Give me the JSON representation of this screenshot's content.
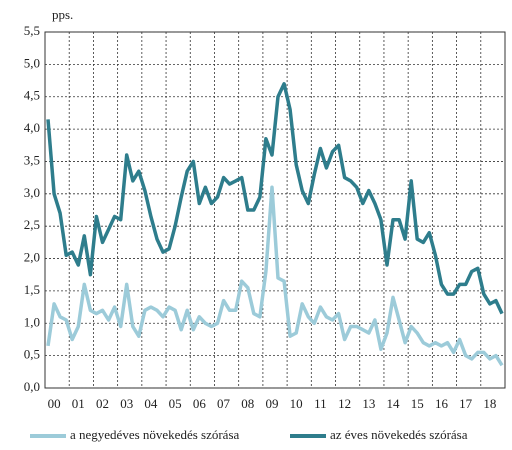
{
  "chart_data": {
    "type": "line",
    "y_label": "pps.",
    "categories": [
      null,
      "00",
      null,
      null,
      null,
      "01",
      null,
      null,
      null,
      "02",
      null,
      null,
      null,
      "03",
      null,
      null,
      null,
      "04",
      null,
      null,
      null,
      "05",
      null,
      null,
      null,
      "06",
      null,
      null,
      null,
      "07",
      null,
      null,
      null,
      "08",
      null,
      null,
      null,
      "09",
      null,
      null,
      null,
      "10",
      null,
      null,
      null,
      "11",
      null,
      null,
      null,
      "12",
      null,
      null,
      null,
      "13",
      null,
      null,
      null,
      "14",
      null,
      null,
      null,
      "15",
      null,
      null,
      null,
      "16",
      null,
      null,
      null,
      "17",
      null,
      null,
      null,
      "18",
      null,
      null
    ],
    "series": [
      {
        "name": "a negyedéves növekedés szórása",
        "color": "#9ccbd9",
        "values": [
          0.65,
          1.3,
          1.1,
          1.05,
          0.75,
          0.95,
          1.6,
          1.2,
          1.15,
          1.2,
          1.05,
          1.25,
          0.95,
          1.6,
          0.95,
          0.8,
          1.2,
          1.25,
          1.2,
          1.1,
          1.25,
          1.2,
          0.9,
          1.2,
          0.9,
          1.1,
          1.0,
          0.95,
          1.0,
          1.35,
          1.2,
          1.2,
          1.65,
          1.55,
          1.15,
          1.1,
          1.8,
          3.1,
          1.7,
          1.65,
          0.8,
          0.85,
          1.3,
          1.1,
          1.0,
          1.25,
          1.1,
          1.05,
          1.15,
          0.75,
          0.95,
          0.95,
          0.9,
          0.85,
          1.05,
          0.6,
          0.85,
          1.4,
          1.05,
          0.7,
          0.95,
          0.85,
          0.7,
          0.65,
          0.7,
          0.65,
          0.7,
          0.55,
          0.75,
          0.5,
          0.45,
          0.55,
          0.55,
          0.45,
          0.5,
          0.35
        ]
      },
      {
        "name": "az éves növekedés szórása",
        "color": "#2e7d8c",
        "values": [
          4.15,
          3.0,
          2.7,
          2.05,
          2.1,
          1.9,
          2.35,
          1.75,
          2.65,
          2.25,
          2.45,
          2.65,
          2.6,
          3.6,
          3.2,
          3.35,
          3.05,
          2.65,
          2.3,
          2.1,
          2.15,
          2.5,
          2.95,
          3.35,
          3.5,
          2.85,
          3.1,
          2.85,
          2.95,
          3.25,
          3.15,
          3.2,
          3.25,
          2.75,
          2.75,
          2.95,
          3.85,
          3.6,
          4.5,
          4.7,
          4.3,
          3.45,
          3.05,
          2.85,
          3.3,
          3.7,
          3.4,
          3.65,
          3.75,
          3.25,
          3.2,
          3.1,
          2.85,
          3.05,
          2.85,
          2.6,
          1.9,
          2.6,
          2.6,
          2.3,
          3.2,
          2.3,
          2.25,
          2.4,
          2.05,
          1.6,
          1.45,
          1.45,
          1.6,
          1.6,
          1.8,
          1.85,
          1.45,
          1.3,
          1.35,
          1.15
        ]
      }
    ],
    "ylim": [
      0,
      5.5
    ],
    "yticks": [
      {
        "value": 0,
        "label": "0,0"
      },
      {
        "value": 0.5,
        "label": "0,5"
      },
      {
        "value": 1,
        "label": "1,0"
      },
      {
        "value": 1.5,
        "label": "1,5"
      },
      {
        "value": 2,
        "label": "2,0"
      },
      {
        "value": 2.5,
        "label": "2,5"
      },
      {
        "value": 3,
        "label": "3,0"
      },
      {
        "value": 3.5,
        "label": "3,5"
      },
      {
        "value": 4,
        "label": "4,0"
      },
      {
        "value": 4.5,
        "label": "4,5"
      },
      {
        "value": 5,
        "label": "5,0"
      },
      {
        "value": 5.5,
        "label": "5,5"
      }
    ],
    "grid": true
  }
}
